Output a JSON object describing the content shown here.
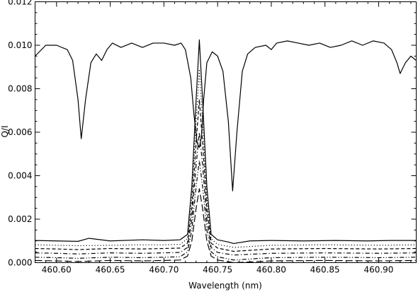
{
  "chart_data": {
    "type": "line",
    "title": "",
    "xlabel": "Wavelength (nm)",
    "ylabel": "Q/I",
    "xlim": [
      460.58,
      460.935
    ],
    "ylim": [
      0.0,
      0.012
    ],
    "x_ticks": [
      460.6,
      460.65,
      460.7,
      460.75,
      460.8,
      460.85,
      460.9
    ],
    "x_tick_labels": [
      "460.60",
      "460.65",
      "460.70",
      "460.75",
      "460.80",
      "460.85",
      "460.90"
    ],
    "y_ticks": [
      0.0,
      0.002,
      0.004,
      0.006,
      0.008,
      0.01,
      0.012
    ],
    "y_tick_labels": [
      "0.000",
      "0.002",
      "0.004",
      "0.006",
      "0.008",
      "0.010",
      "0.012"
    ],
    "grid": false,
    "legend": "none",
    "series": [
      {
        "style": "solid",
        "x": [
          460.58,
          460.59,
          460.6,
          460.61,
          460.615,
          460.62,
          460.623,
          460.627,
          460.632,
          460.637,
          460.642,
          460.647,
          460.652,
          460.66,
          460.67,
          460.68,
          460.69,
          460.7,
          460.71,
          460.716,
          460.72,
          460.725,
          460.728,
          460.731,
          460.733,
          460.735,
          460.737,
          460.74,
          460.745,
          460.75,
          460.755,
          460.76,
          460.764,
          460.768,
          460.773,
          460.778,
          460.785,
          460.795,
          460.8,
          460.805,
          460.815,
          460.825,
          460.835,
          460.845,
          460.855,
          460.865,
          460.875,
          460.885,
          460.895,
          460.905,
          460.912,
          460.917,
          460.92,
          460.925,
          460.93,
          460.935
        ],
        "y": [
          0.0095,
          0.01,
          0.01,
          0.0098,
          0.0093,
          0.0075,
          0.0057,
          0.0075,
          0.0092,
          0.0096,
          0.0093,
          0.0098,
          0.0101,
          0.0099,
          0.0101,
          0.0099,
          0.0101,
          0.0101,
          0.01,
          0.0101,
          0.0098,
          0.0085,
          0.0068,
          0.0055,
          0.0053,
          0.0058,
          0.0075,
          0.0092,
          0.0097,
          0.0095,
          0.0088,
          0.0065,
          0.0033,
          0.006,
          0.0088,
          0.0096,
          0.0099,
          0.01,
          0.0098,
          0.0101,
          0.0102,
          0.0101,
          0.01,
          0.0101,
          0.0099,
          0.01,
          0.0102,
          0.01,
          0.0102,
          0.0101,
          0.0098,
          0.0092,
          0.0087,
          0.0092,
          0.0095,
          0.0093
        ]
      },
      {
        "style": "solid",
        "x": [
          460.58,
          460.6,
          460.62,
          460.63,
          460.65,
          460.68,
          460.7,
          460.715,
          460.722,
          460.726,
          460.73,
          460.733,
          460.736,
          460.74,
          460.744,
          460.75,
          460.76,
          460.765,
          460.78,
          460.8,
          460.83,
          460.86,
          460.89,
          460.91,
          460.935
        ],
        "y": [
          0.00102,
          0.001,
          0.00098,
          0.00112,
          0.001,
          0.00105,
          0.00102,
          0.00105,
          0.0013,
          0.0035,
          0.0075,
          0.01025,
          0.0075,
          0.0035,
          0.0013,
          0.00105,
          0.00095,
          0.00088,
          0.001,
          0.00102,
          0.001,
          0.00102,
          0.001,
          0.00102,
          0.00102
        ]
      },
      {
        "style": "dotted",
        "x": [
          460.58,
          460.6,
          460.62,
          460.65,
          460.68,
          460.7,
          460.715,
          460.722,
          460.726,
          460.73,
          460.733,
          460.736,
          460.74,
          460.744,
          460.75,
          460.765,
          460.8,
          460.85,
          460.9,
          460.935
        ],
        "y": [
          0.00082,
          0.0008,
          0.00078,
          0.0008,
          0.00082,
          0.00082,
          0.00084,
          0.0011,
          0.003,
          0.0065,
          0.0089,
          0.0065,
          0.003,
          0.0011,
          0.00084,
          0.0007,
          0.0008,
          0.00082,
          0.0008,
          0.00082
        ]
      },
      {
        "style": "dashed",
        "x": [
          460.58,
          460.6,
          460.62,
          460.65,
          460.68,
          460.7,
          460.715,
          460.722,
          460.726,
          460.73,
          460.733,
          460.736,
          460.74,
          460.744,
          460.75,
          460.765,
          460.8,
          460.85,
          460.9,
          460.935
        ],
        "y": [
          0.00065,
          0.00063,
          0.0006,
          0.00065,
          0.00063,
          0.00065,
          0.00067,
          0.0009,
          0.0025,
          0.0055,
          0.0075,
          0.0055,
          0.0025,
          0.0009,
          0.00067,
          0.00052,
          0.00063,
          0.00065,
          0.00063,
          0.00065
        ]
      },
      {
        "style": "dashdot",
        "x": [
          460.58,
          460.6,
          460.62,
          460.65,
          460.68,
          460.7,
          460.715,
          460.722,
          460.726,
          460.73,
          460.733,
          460.736,
          460.74,
          460.744,
          460.75,
          460.765,
          460.8,
          460.85,
          460.9,
          460.935
        ],
        "y": [
          0.00045,
          0.00043,
          0.0004,
          0.00045,
          0.00043,
          0.00045,
          0.00047,
          0.0007,
          0.002,
          0.0045,
          0.006,
          0.0045,
          0.002,
          0.0007,
          0.00047,
          0.00035,
          0.00043,
          0.00045,
          0.00043,
          0.00045
        ]
      },
      {
        "style": "dashdotdot",
        "x": [
          460.58,
          460.6,
          460.62,
          460.65,
          460.68,
          460.7,
          460.715,
          460.722,
          460.726,
          460.73,
          460.733,
          460.736,
          460.74,
          460.744,
          460.75,
          460.765,
          460.8,
          460.85,
          460.9,
          460.935
        ],
        "y": [
          0.00025,
          0.00023,
          0.0002,
          0.00025,
          0.00023,
          0.00025,
          0.00027,
          0.0005,
          0.0015,
          0.0035,
          0.0047,
          0.0035,
          0.0015,
          0.0005,
          0.00027,
          0.00012,
          0.00023,
          0.00025,
          0.00023,
          0.00025
        ]
      },
      {
        "style": "longdash",
        "x": [
          460.58,
          460.6,
          460.62,
          460.65,
          460.68,
          460.7,
          460.715,
          460.722,
          460.726,
          460.73,
          460.733,
          460.736,
          460.74,
          460.744,
          460.75,
          460.765,
          460.8,
          460.85,
          460.9,
          460.935
        ],
        "y": [
          0.0001,
          8e-05,
          5e-05,
          0.0001,
          8e-05,
          0.0001,
          0.00012,
          0.0003,
          0.001,
          0.0025,
          0.0034,
          0.0025,
          0.001,
          0.0003,
          0.00012,
          0.0,
          8e-05,
          0.0001,
          8e-05,
          0.0001
        ]
      }
    ]
  }
}
